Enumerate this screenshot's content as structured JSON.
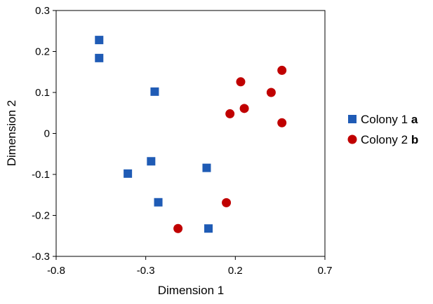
{
  "chart_data": {
    "type": "scatter",
    "xlabel": "Dimension 1",
    "ylabel": "Dimension 2",
    "xlim": [
      -0.8,
      0.7
    ],
    "ylim": [
      -0.3,
      0.3
    ],
    "xticks": [
      -0.8,
      -0.3,
      0.2,
      0.7
    ],
    "yticks": [
      -0.3,
      -0.2,
      -0.1,
      0,
      0.1,
      0.2,
      0.3
    ],
    "xtick_labels": [
      "-0.8",
      "-0.3",
      "0.2",
      "0.7"
    ],
    "ytick_labels": [
      "-0.3",
      "-0.2",
      "-0.1",
      "0",
      "0.1",
      "0.2",
      "0.3"
    ],
    "grid": false,
    "legend_position": "right",
    "series": [
      {
        "name": "Colony 1",
        "annotation": "a",
        "marker": "square",
        "color": "#1f5bb5",
        "points": [
          [
            -0.56,
            0.228
          ],
          [
            -0.56,
            0.184
          ],
          [
            -0.25,
            0.102
          ],
          [
            -0.4,
            -0.098
          ],
          [
            -0.27,
            -0.068
          ],
          [
            -0.23,
            -0.168
          ],
          [
            0.04,
            -0.084
          ],
          [
            0.05,
            -0.232
          ]
        ]
      },
      {
        "name": "Colony 2",
        "annotation": "b",
        "marker": "circle",
        "color": "#c00000",
        "points": [
          [
            -0.12,
            -0.232
          ],
          [
            0.15,
            -0.169
          ],
          [
            0.17,
            0.048
          ],
          [
            0.23,
            0.126
          ],
          [
            0.25,
            0.061
          ],
          [
            0.4,
            0.1
          ],
          [
            0.46,
            0.154
          ],
          [
            0.46,
            0.026
          ]
        ]
      }
    ]
  }
}
